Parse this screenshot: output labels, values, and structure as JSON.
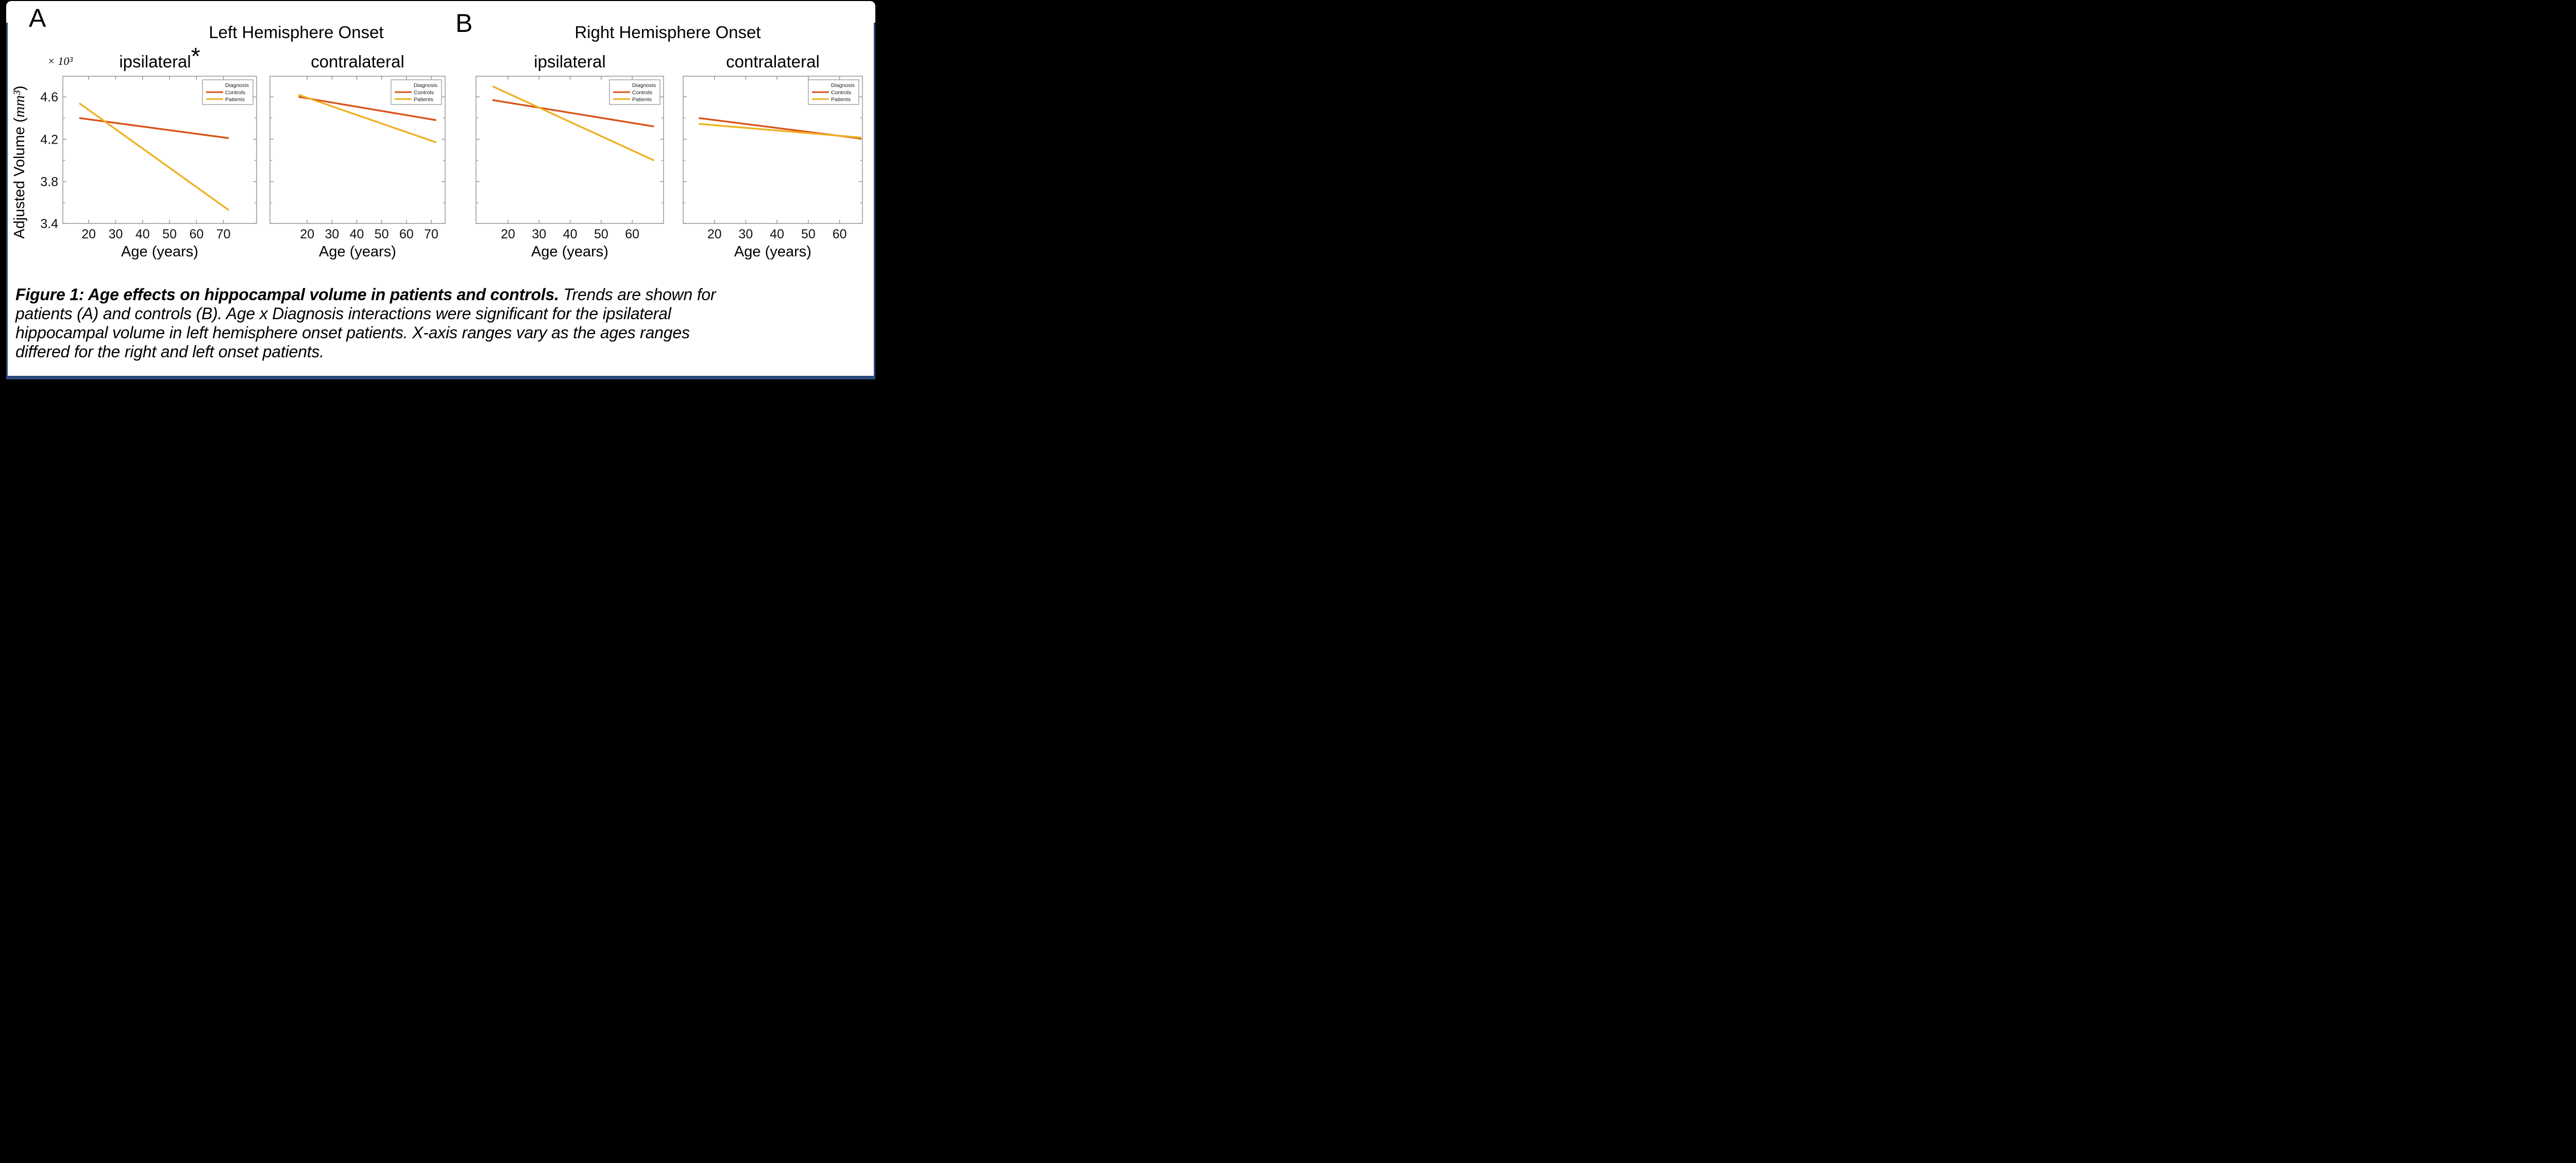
{
  "figure": {
    "panel_a": {
      "letter": "A",
      "title": "Left Hemisphere Onset"
    },
    "panel_b": {
      "letter": "B",
      "title": "Right Hemisphere Onset"
    },
    "y_axis": {
      "label_prefix": "Adjusted Volume (",
      "label_math": "mm³",
      "label_suffix": ")",
      "multiplier": "× 10³"
    }
  },
  "legend": {
    "title": "Diagnosis",
    "entries": [
      {
        "label": "Controls",
        "color": "#D95319"
      },
      {
        "label": "Patients",
        "color": "#EDB120"
      }
    ],
    "position": "top-right"
  },
  "colors": {
    "controls": "#D95319",
    "patients": "#EDB120",
    "axes": "#909090",
    "tick_text": "#111111",
    "selection_border": "#2c4a7c",
    "background": "#ffffff"
  },
  "caption": {
    "line1_bold": "Figure 1: Age effects on hippocampal volume in patients and controls.",
    "line1_rest": " Trends are shown for",
    "line2": "patients (A) and controls (B). Age x Diagnosis interactions were significant for the ipsilateral",
    "line3": "hippocampal volume in left hemisphere onset patients. X-axis ranges vary as the ages ranges",
    "line4": "differed for the right and left onset patients."
  },
  "chart_data": [
    {
      "type": "line",
      "panel": "A",
      "title": "ipsilateral",
      "significance_marker": "*",
      "xlabel": "Age (years)",
      "xlim": [
        10.4,
        82.3
      ],
      "xticks": [
        20,
        30,
        40,
        50,
        60,
        70
      ],
      "ylim": [
        3.405,
        4.795
      ],
      "yticks_major": [
        3.4,
        3.8,
        4.2,
        4.6
      ],
      "yticks_minor": [
        3.6,
        4.0,
        4.4
      ],
      "show_y_tick_labels": true,
      "grid": false,
      "series": [
        {
          "name": "Controls",
          "color": "#D95319",
          "x": [
            16.5,
            72
          ],
          "y": [
            4.4,
            4.21
          ]
        },
        {
          "name": "Patients",
          "color": "#EDB120",
          "x": [
            16.5,
            72
          ],
          "y": [
            4.54,
            3.53
          ]
        }
      ]
    },
    {
      "type": "line",
      "panel": "A",
      "title": "contralateral",
      "significance_marker": "",
      "xlabel": "Age (years)",
      "xlim": [
        5.0,
        75.6
      ],
      "xticks": [
        20,
        30,
        40,
        50,
        60,
        70
      ],
      "ylim": [
        3.405,
        4.795
      ],
      "yticks_major": [
        3.4,
        3.8,
        4.2,
        4.6
      ],
      "yticks_minor": [
        3.6,
        4.0,
        4.4
      ],
      "show_y_tick_labels": false,
      "grid": false,
      "series": [
        {
          "name": "Controls",
          "color": "#D95319",
          "x": [
            16.5,
            72
          ],
          "y": [
            4.6,
            4.38
          ]
        },
        {
          "name": "Patients",
          "color": "#EDB120",
          "x": [
            16.5,
            72
          ],
          "y": [
            4.62,
            4.17
          ]
        }
      ]
    },
    {
      "type": "line",
      "panel": "B",
      "title": "ipsilateral",
      "significance_marker": "",
      "xlabel": "Age (years)",
      "xlim": [
        9.7,
        70.1
      ],
      "xticks": [
        20,
        30,
        40,
        50,
        60
      ],
      "ylim": [
        3.405,
        4.795
      ],
      "yticks_major": [
        3.4,
        3.8,
        4.2,
        4.6
      ],
      "yticks_minor": [
        3.6,
        4.0,
        4.4
      ],
      "show_y_tick_labels": false,
      "grid": false,
      "series": [
        {
          "name": "Controls",
          "color": "#D95319",
          "x": [
            15,
            67
          ],
          "y": [
            4.57,
            4.32
          ]
        },
        {
          "name": "Patients",
          "color": "#EDB120",
          "x": [
            15,
            67
          ],
          "y": [
            4.7,
            4.0
          ]
        }
      ]
    },
    {
      "type": "line",
      "panel": "B",
      "title": "contralateral",
      "significance_marker": "",
      "xlabel": "Age (years)",
      "xlim": [
        10.0,
        67.3
      ],
      "xticks": [
        20,
        30,
        40,
        50,
        60
      ],
      "ylim": [
        3.405,
        4.795
      ],
      "yticks_major": [
        3.4,
        3.8,
        4.2,
        4.6
      ],
      "yticks_minor": [
        3.6,
        4.0,
        4.4
      ],
      "show_y_tick_labels": false,
      "grid": false,
      "series": [
        {
          "name": "Controls",
          "color": "#D95319",
          "x": [
            15,
            67
          ],
          "y": [
            4.4,
            4.205
          ]
        },
        {
          "name": "Patients",
          "color": "#EDB120",
          "x": [
            15,
            67
          ],
          "y": [
            4.345,
            4.215
          ]
        }
      ]
    }
  ]
}
